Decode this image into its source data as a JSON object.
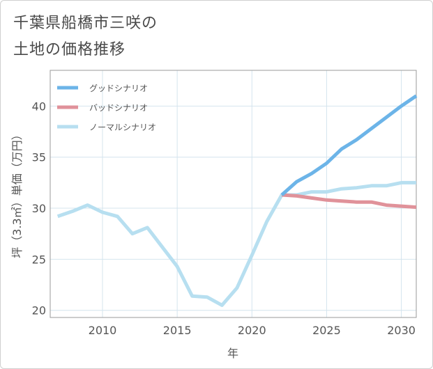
{
  "title": {
    "line1": "千葉県船橋市三咲の",
    "line2": "土地の価格推移"
  },
  "chart_data": {
    "type": "line",
    "title": "千葉県船橋市三咲の土地の価格推移",
    "xlabel": "年",
    "ylabel": "坪（3.3㎡）単価（万円）",
    "xlim": [
      2006.5,
      2031
    ],
    "ylim": [
      19.3,
      43.5
    ],
    "xticks": [
      2010,
      2015,
      2020,
      2025,
      2030
    ],
    "yticks": [
      20,
      25,
      30,
      35,
      40
    ],
    "grid": true,
    "legend_position": "top-left",
    "series": [
      {
        "name": "グッドシナリオ",
        "color": "#6cb4e8",
        "x": [
          2022,
          2023,
          2024,
          2025,
          2026,
          2027,
          2028,
          2029,
          2030,
          2031
        ],
        "values": [
          31.3,
          32.6,
          33.4,
          34.4,
          35.8,
          36.7,
          37.8,
          38.9,
          40.0,
          41.0
        ]
      },
      {
        "name": "バッドシナリオ",
        "color": "#e0929a",
        "x": [
          2022,
          2023,
          2024,
          2025,
          2026,
          2027,
          2028,
          2029,
          2030,
          2031
        ],
        "values": [
          31.3,
          31.2,
          31.0,
          30.8,
          30.7,
          30.6,
          30.6,
          30.3,
          30.2,
          30.1
        ]
      },
      {
        "name": "ノーマルシナリオ",
        "color": "#b7dff0",
        "x": [
          2007,
          2008,
          2009,
          2010,
          2011,
          2012,
          2013,
          2014,
          2015,
          2016,
          2017,
          2018,
          2019,
          2020,
          2021,
          2022,
          2023,
          2024,
          2025,
          2026,
          2027,
          2028,
          2029,
          2030,
          2031
        ],
        "values": [
          29.2,
          29.7,
          30.3,
          29.6,
          29.2,
          27.5,
          28.1,
          26.2,
          24.3,
          21.4,
          21.3,
          20.5,
          22.2,
          25.4,
          28.7,
          31.3,
          31.3,
          31.6,
          31.6,
          31.9,
          32.0,
          32.2,
          32.2,
          32.5,
          32.5
        ]
      }
    ]
  }
}
